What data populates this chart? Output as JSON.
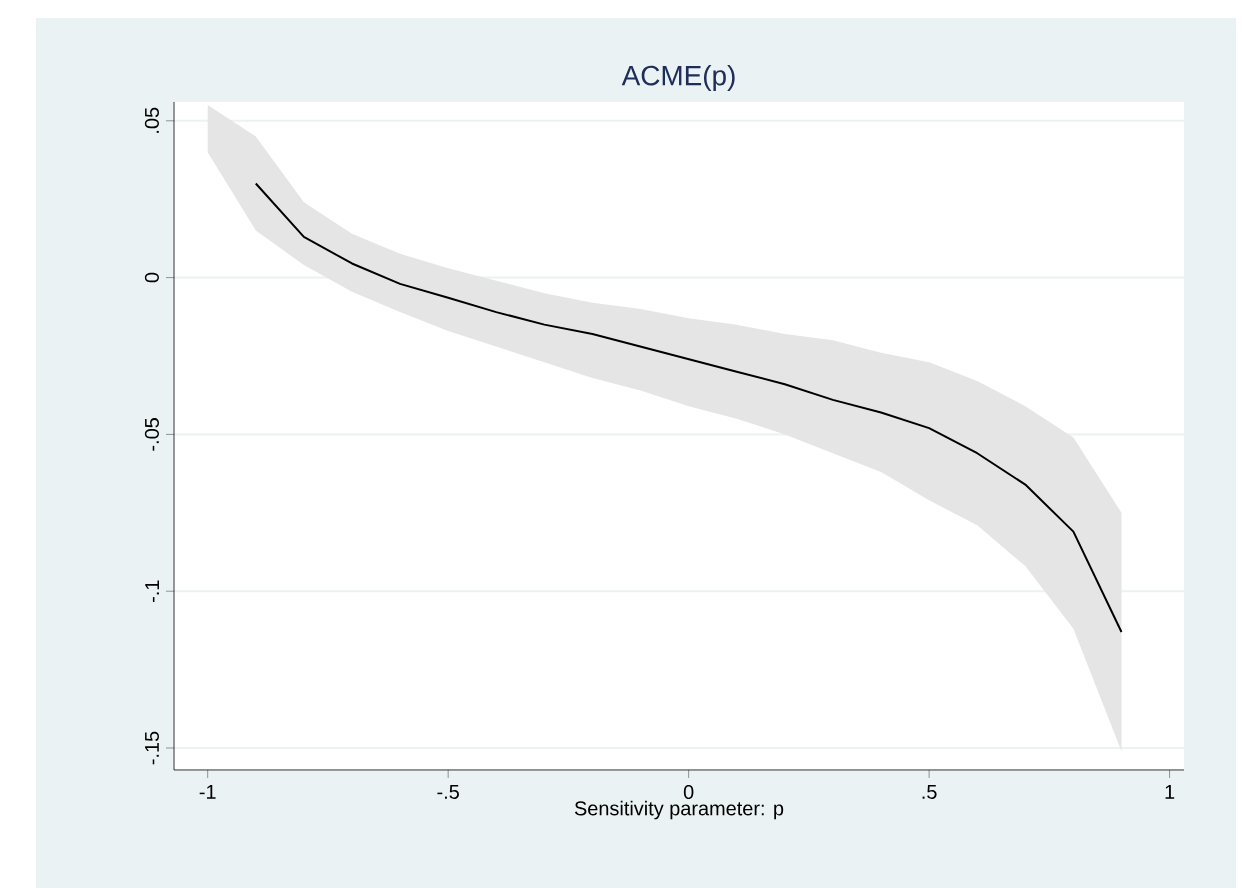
{
  "chart_data": {
    "type": "line",
    "title": "ACME(p)",
    "xlabel": "Sensitivity parameter: p",
    "x": [
      -1,
      -0.9,
      -0.8,
      -0.7,
      -0.6,
      -0.5,
      -0.4,
      -0.3,
      -0.2,
      -0.1,
      0,
      0.1,
      0.2,
      0.3,
      0.4,
      0.5,
      0.6,
      0.7,
      0.8,
      0.9
    ],
    "series": [
      {
        "color": "#000000",
        "values": [
          null,
          0.03,
          0.013,
          0.0045,
          -0.002,
          -0.0064,
          -0.011,
          -0.015,
          -0.018,
          -0.022,
          -0.026,
          -0.03,
          -0.034,
          -0.039,
          -0.043,
          -0.048,
          -0.056,
          -0.066,
          -0.081,
          -0.113
        ],
        "upper": [
          0.055,
          0.045,
          0.024,
          0.014,
          0.0076,
          0.003,
          -0.001,
          -0.005,
          -0.008,
          -0.01,
          -0.013,
          -0.015,
          -0.018,
          -0.02,
          -0.024,
          -0.027,
          -0.033,
          -0.041,
          -0.051,
          -0.075
        ],
        "lower": [
          0.04,
          0.015,
          0.004,
          -0.0045,
          -0.011,
          -0.017,
          -0.022,
          -0.027,
          -0.032,
          -0.036,
          -0.041,
          -0.045,
          -0.05,
          -0.056,
          -0.062,
          -0.071,
          -0.079,
          -0.092,
          -0.112,
          -0.151
        ]
      }
    ],
    "xlim": [
      -1.07,
      1.03
    ],
    "ylim": [
      -0.157,
      0.056
    ],
    "xticks": [
      -1,
      {
        "value": -0.5,
        "label": "-.5"
      },
      0,
      {
        "value": 0.5,
        "label": ".5"
      },
      1
    ],
    "yticks": [
      {
        "value": -0.15,
        "label": "-.15"
      },
      {
        "value": -0.1,
        "label": "-.1"
      },
      {
        "value": -0.05,
        "label": "-.05"
      },
      0,
      {
        "value": 0.05,
        "label": ".05"
      }
    ],
    "grid": "y",
    "marker": "none",
    "line_style": "solid"
  }
}
